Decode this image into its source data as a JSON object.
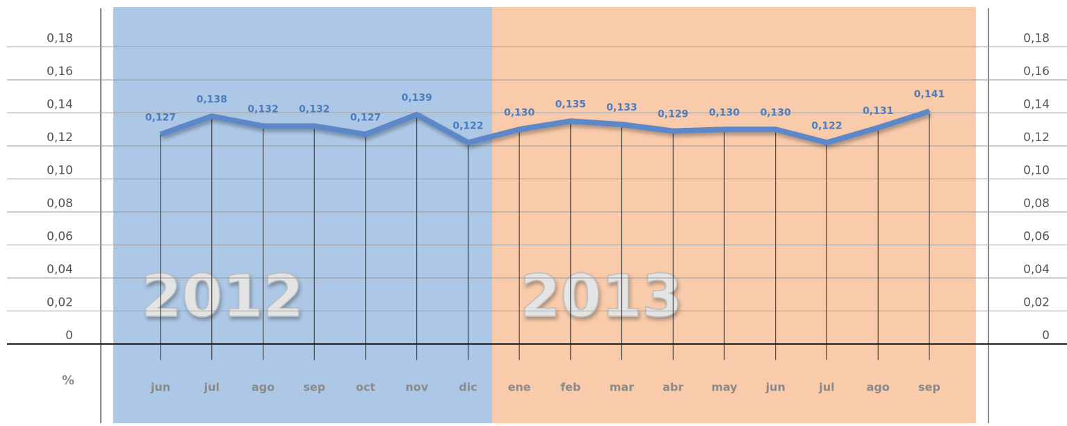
{
  "chart_data": {
    "type": "line",
    "y_label": "%",
    "annotations": [
      "2012",
      "2013"
    ],
    "categories": [
      "jun",
      "jul",
      "ago",
      "sep",
      "oct",
      "nov",
      "dic",
      "ene",
      "feb",
      "mar",
      "abr",
      "may",
      "jun",
      "jul",
      "ago",
      "sep"
    ],
    "values": [
      0.127,
      0.138,
      0.132,
      0.132,
      0.127,
      0.139,
      0.122,
      0.13,
      0.135,
      0.133,
      0.129,
      0.13,
      0.13,
      0.122,
      0.131,
      0.141
    ],
    "value_labels": [
      "0,127",
      "0,138",
      "0,132",
      "0,132",
      "0,127",
      "0,139",
      "0,122",
      "0,130",
      "0,135",
      "0,133",
      "0,129",
      "0,130",
      "0,130",
      "0,122",
      "0,131",
      "0,141"
    ],
    "color": "#5b87c8",
    "ylim": [
      0,
      0.18
    ],
    "yticks": [
      0,
      {
        "value": 0.02,
        "label": "0,02"
      },
      {
        "value": 0.04,
        "label": "0,04"
      },
      {
        "value": 0.06,
        "label": "0,06"
      },
      {
        "value": 0.08,
        "label": "0,08"
      },
      {
        "value": 0.1,
        "label": "0,10"
      },
      {
        "value": 0.12,
        "label": "0,12"
      },
      {
        "value": 0.14,
        "label": "0,14"
      },
      {
        "value": 0.16,
        "label": "0,16"
      },
      {
        "value": 0.18,
        "label": "0,18"
      }
    ],
    "grid": true
  }
}
